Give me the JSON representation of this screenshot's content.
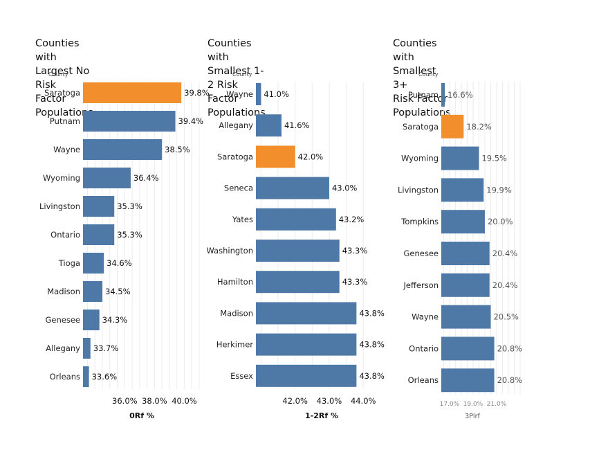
{
  "colors": {
    "highlight": "#F28E2B",
    "default": "#4E79A7"
  },
  "chart_data": [
    {
      "type": "bar",
      "orientation": "horizontal",
      "title": "Counties with Largest No Risk\nFactor Populations",
      "row_header": "County",
      "xlabel": "0Rf %",
      "xlim": [
        33.2,
        41.0
      ],
      "ticks": [
        "36.0%",
        "38.0%",
        "40.0%"
      ],
      "tick_values": [
        36.0,
        38.0,
        40.0
      ],
      "grid": true,
      "highlight": "Saratoga",
      "categories": [
        "Saratoga",
        "Putnam",
        "Wayne",
        "Wyoming",
        "Livingston",
        "Ontario",
        "Tioga",
        "Madison",
        "Genesee",
        "Allegany",
        "Orleans"
      ],
      "values": [
        39.8,
        39.4,
        38.5,
        36.4,
        35.3,
        35.3,
        34.6,
        34.5,
        34.3,
        33.7,
        33.6
      ],
      "labels": [
        "39.8%",
        "39.4%",
        "38.5%",
        "36.4%",
        "35.3%",
        "35.3%",
        "34.6%",
        "34.5%",
        "34.3%",
        "33.7%",
        "33.6%"
      ]
    },
    {
      "type": "bar",
      "orientation": "horizontal",
      "title": "Counties with Smallest 1-2 Risk\nFactor Populations",
      "row_header": "County",
      "xlabel": "1-2Rf %",
      "xlim": [
        40.85,
        44.3
      ],
      "ticks": [
        "42.0%",
        "43.0%",
        "44.0%"
      ],
      "tick_values": [
        42.0,
        43.0,
        44.0
      ],
      "grid": true,
      "highlight": "Saratoga",
      "categories": [
        "Wayne",
        "Allegany",
        "Saratoga",
        "Seneca",
        "Yates",
        "Washington",
        "Hamilton",
        "Madison",
        "Herkimer",
        "Essex"
      ],
      "values": [
        41.0,
        41.6,
        42.0,
        43.0,
        43.2,
        43.3,
        43.3,
        43.8,
        43.8,
        43.8
      ],
      "labels": [
        "41.0%",
        "41.6%",
        "42.0%",
        "43.0%",
        "43.2%",
        "43.3%",
        "43.3%",
        "43.8%",
        "43.8%",
        "43.8%"
      ]
    },
    {
      "type": "bar",
      "orientation": "horizontal",
      "title": "Counties with Smallest 3+\nRisk Factor Populations",
      "row_header": "County",
      "xlabel": "3Plrf",
      "xlim": [
        16.3,
        23.0
      ],
      "ticks": [
        "17.0%",
        "19.0%",
        "21.0%"
      ],
      "tick_values": [
        17.0,
        19.0,
        21.0
      ],
      "grid": true,
      "highlight": "Saratoga",
      "categories": [
        "Putnam",
        "Saratoga",
        "Wyoming",
        "Livingston",
        "Tompkins",
        "Genesee",
        "Jefferson",
        "Wayne",
        "Ontario",
        "Orleans"
      ],
      "values": [
        16.6,
        18.2,
        19.5,
        19.9,
        20.0,
        20.4,
        20.4,
        20.5,
        20.8,
        20.8
      ],
      "labels": [
        "16.6%",
        "18.2%",
        "19.5%",
        "19.9%",
        "20.0%",
        "20.4%",
        "20.4%",
        "20.5%",
        "20.8%",
        "20.8%"
      ]
    }
  ]
}
